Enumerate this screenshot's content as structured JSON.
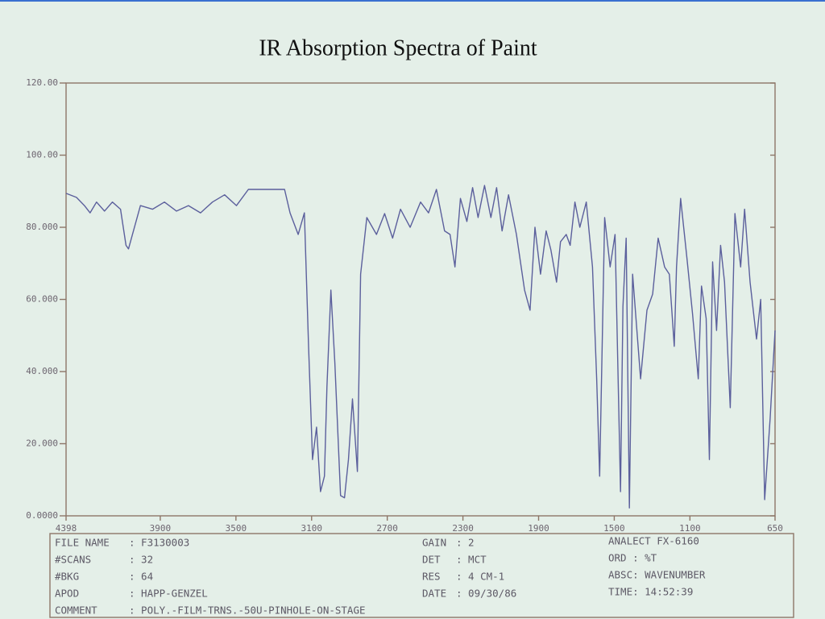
{
  "chart_data": {
    "type": "line",
    "title": "IR Absorption Spectra of Paint",
    "x": [
      4398,
      4343,
      4301,
      4271,
      4237,
      4195,
      4153,
      4110,
      4081,
      4068,
      4047,
      4005,
      3941,
      3878,
      3814,
      3751,
      3687,
      3624,
      3560,
      3497,
      3434,
      3370,
      3307,
      3243,
      3214,
      3171,
      3138,
      3116,
      3095,
      3074,
      3053,
      3032,
      3019,
      2998,
      2977,
      2947,
      2926,
      2905,
      2884,
      2858,
      2841,
      2808,
      2757,
      2714,
      2672,
      2630,
      2579,
      2524,
      2482,
      2440,
      2397,
      2368,
      2342,
      2313,
      2279,
      2249,
      2220,
      2186,
      2152,
      2122,
      2093,
      2059,
      2017,
      1974,
      1945,
      1919,
      1890,
      1860,
      1835,
      1805,
      1784,
      1754,
      1733,
      1708,
      1682,
      1648,
      1615,
      1593,
      1577,
      1551,
      1522,
      1496,
      1467,
      1454,
      1437,
      1420,
      1403,
      1361,
      1327,
      1297,
      1268,
      1234,
      1209,
      1183,
      1171,
      1149,
      1116,
      1086,
      1056,
      1039,
      1014,
      997,
      980,
      959,
      938,
      917,
      887,
      862,
      832,
      811,
      782,
      748,
      726,
      705,
      676,
      650
    ],
    "values": [
      89.4,
      88.3,
      86,
      84,
      87,
      84.5,
      87,
      85,
      75,
      74,
      78,
      86,
      85,
      87,
      84.5,
      86,
      84,
      87,
      89,
      86,
      90.5,
      90.5,
      90.5,
      90.5,
      84,
      78,
      84,
      47,
      15.6,
      24.6,
      6.7,
      11,
      35.8,
      62.6,
      42.5,
      5.6,
      5,
      15.6,
      32.4,
      12.3,
      67,
      82.7,
      78,
      83.8,
      77,
      85,
      80,
      87,
      84,
      90.5,
      79,
      78,
      69,
      88,
      81.6,
      91,
      82.7,
      91.6,
      82.7,
      91,
      79,
      89,
      78,
      62.6,
      57,
      80,
      67,
      79,
      73.7,
      64.8,
      76,
      78,
      75,
      87,
      80,
      87,
      69,
      38,
      11,
      82.7,
      69,
      78,
      6.7,
      58,
      77,
      2.2,
      67,
      38,
      57,
      61.5,
      77,
      69,
      67,
      47,
      69,
      88,
      71.5,
      56,
      38,
      63.7,
      54.7,
      15.6,
      70.4,
      51.4,
      75,
      64.8,
      30,
      83.8,
      69,
      85,
      64.8,
      49,
      60,
      4.5,
      27,
      51.4
    ],
    "color": "#5b5f9c",
    "xlim": [
      4398,
      650
    ],
    "xticks": [
      4398,
      3900,
      3500,
      3100,
      2700,
      2300,
      1900,
      1500,
      1100,
      650
    ],
    "ylim": [
      0,
      120
    ],
    "yticks": [
      {
        "value": 0,
        "label": "0.0000"
      },
      {
        "value": 20,
        "label": "20.000"
      },
      {
        "value": 40,
        "label": "40.000"
      },
      {
        "value": 60,
        "label": "60.000"
      },
      {
        "value": 80,
        "label": "80.000"
      },
      {
        "value": 100,
        "label": "100.00"
      },
      {
        "value": 120,
        "label": "120.00"
      }
    ],
    "grid": false
  },
  "info": {
    "left": [
      [
        "FILE NAME",
        ": F3130003"
      ],
      [
        "#SCANS",
        ": 32"
      ],
      [
        "#BKG",
        ": 64"
      ],
      [
        "APOD",
        ": HAPP-GENZEL"
      ],
      [
        "COMMENT",
        ": POLY.-FILM-TRNS.-50U-PINHOLE-ON-STAGE"
      ]
    ],
    "middle": [
      [
        "GAIN",
        ": 2"
      ],
      [
        "DET",
        ": MCT"
      ],
      [
        "RES",
        ": 4 CM-1"
      ],
      [
        "DATE",
        ": 09/30/86"
      ]
    ],
    "right": [
      "ANALECT FX-6160",
      "ORD : %T",
      "ABSC: WAVENUMBER",
      "TIME: 14:52:39"
    ]
  }
}
